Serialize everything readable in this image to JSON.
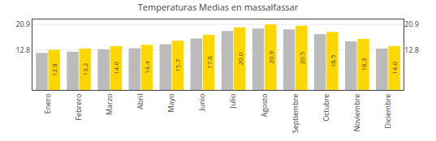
{
  "chart_data": {
    "type": "bar",
    "title": "Temperaturas Medias en massalfassar",
    "categories": [
      "Enero",
      "Febrero",
      "Marzo",
      "Abril",
      "Mayo",
      "Junio",
      "Julio",
      "Agosto",
      "Septiembre",
      "Octubre",
      "Noviembre",
      "Diciembre"
    ],
    "series": [
      {
        "color": "#BBBBBB",
        "values": [
          11.8,
          12.2,
          13.0,
          13.3,
          14.6,
          16.4,
          18.8,
          19.6,
          19.3,
          17.8,
          15.5,
          13.2
        ]
      },
      {
        "color": "#FFD700",
        "values": [
          12.8,
          13.2,
          14.0,
          14.4,
          15.7,
          17.6,
          20.0,
          20.9,
          20.5,
          18.5,
          16.3,
          14.0
        ],
        "value_labels": [
          "12.8",
          "13.2",
          "14.0",
          "14.4",
          "15.7",
          "17.6",
          "20.0",
          "20.9",
          "20.5",
          "18.5",
          "16.3",
          "14.0"
        ],
        "data_labels": true
      }
    ],
    "ylim": [
      0,
      22.5
    ],
    "yticks": [
      12.8,
      20.9
    ],
    "y2lim": [
      0,
      22.5
    ],
    "y2ticks": [
      12.8,
      20.9
    ],
    "grid": true
  }
}
